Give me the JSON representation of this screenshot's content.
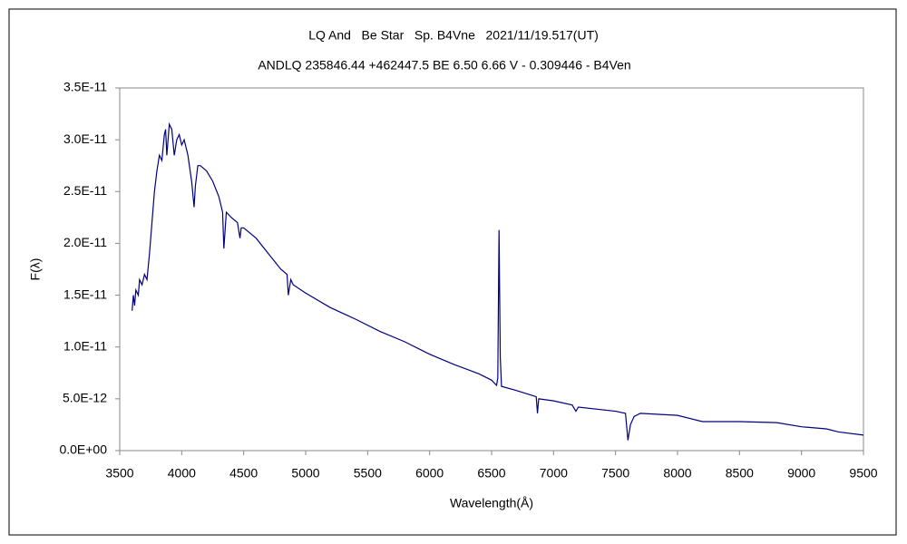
{
  "chart_data": {
    "type": "line",
    "title": "LQ And   Be Star   Sp. B4Vne   2021/11/19.517(UT)",
    "subtitle": "ANDLQ 235846.44 +462447.5 BE 6.50 6.66 V - 0.309446 - B4Ven",
    "xlabel": "Wavelength(Å)",
    "ylabel": "F(λ)",
    "xlim": [
      3500,
      9500
    ],
    "xticks": [
      3500,
      4000,
      4500,
      5000,
      5500,
      6000,
      6500,
      7000,
      7500,
      8000,
      8500,
      9000,
      9500
    ],
    "ylim": [
      0,
      3.5e-11
    ],
    "yticks": [
      {
        "value": 0,
        "label": "0.0E+00"
      },
      {
        "value": 5e-12,
        "label": "5.0E-12"
      },
      {
        "value": 1e-11,
        "label": "1.0E-11"
      },
      {
        "value": 1.5e-11,
        "label": "1.5E-11"
      },
      {
        "value": 2e-11,
        "label": "2.0E-11"
      },
      {
        "value": 2.5e-11,
        "label": "2.5E-11"
      },
      {
        "value": 3e-11,
        "label": "3.0E-11"
      },
      {
        "value": 3.5e-11,
        "label": "3.5E-11"
      }
    ],
    "grid": false,
    "series": [
      {
        "color": "#000080",
        "x": [
          3600,
          3610,
          3620,
          3630,
          3650,
          3660,
          3680,
          3700,
          3720,
          3740,
          3760,
          3780,
          3800,
          3820,
          3840,
          3860,
          3870,
          3880,
          3900,
          3920,
          3940,
          3960,
          3980,
          4000,
          4020,
          4050,
          4080,
          4100,
          4110,
          4130,
          4150,
          4200,
          4250,
          4300,
          4330,
          4340,
          4360,
          4400,
          4450,
          4470,
          4480,
          4500,
          4600,
          4700,
          4800,
          4850,
          4860,
          4880,
          4900,
          5000,
          5200,
          5400,
          5600,
          5800,
          6000,
          6200,
          6400,
          6500,
          6540,
          6550,
          6560,
          6570,
          6580,
          6700,
          6860,
          6870,
          6880,
          7000,
          7150,
          7180,
          7200,
          7500,
          7580,
          7600,
          7620,
          7650,
          7700,
          8000,
          8200,
          8500,
          8800,
          9000,
          9200,
          9300,
          9500
        ],
        "values": [
          1.35e-11,
          1.5e-11,
          1.4e-11,
          1.55e-11,
          1.5e-11,
          1.65e-11,
          1.6e-11,
          1.7e-11,
          1.65e-11,
          1.9e-11,
          2.2e-11,
          2.5e-11,
          2.7e-11,
          2.85e-11,
          2.8e-11,
          3.05e-11,
          3.1e-11,
          2.85e-11,
          3.15e-11,
          3.1e-11,
          2.85e-11,
          3e-11,
          3.05e-11,
          2.95e-11,
          3e-11,
          2.85e-11,
          2.6e-11,
          2.35e-11,
          2.55e-11,
          2.75e-11,
          2.75e-11,
          2.7e-11,
          2.6e-11,
          2.45e-11,
          2.3e-11,
          1.95e-11,
          2.3e-11,
          2.25e-11,
          2.2e-11,
          2.05e-11,
          2.15e-11,
          2.15e-11,
          2.05e-11,
          1.9e-11,
          1.75e-11,
          1.7e-11,
          1.5e-11,
          1.65e-11,
          1.6e-11,
          1.52e-11,
          1.38e-11,
          1.27e-11,
          1.15e-11,
          1.05e-11,
          9.3e-12,
          8.3e-12,
          7.4e-12,
          6.8e-12,
          6.3e-12,
          7e-12,
          2.13e-11,
          9e-12,
          6.2e-12,
          5.8e-12,
          5.2e-12,
          3.6e-12,
          5e-12,
          4.8e-12,
          4.4e-12,
          3.8e-12,
          4.2e-12,
          3.8e-12,
          3.6e-12,
          1e-12,
          2.5e-12,
          3.3e-12,
          3.6e-12,
          3.4e-12,
          2.8e-12,
          2.8e-12,
          2.7e-12,
          2.3e-12,
          2.1e-12,
          1.8e-12,
          1.5e-12
        ]
      }
    ]
  }
}
